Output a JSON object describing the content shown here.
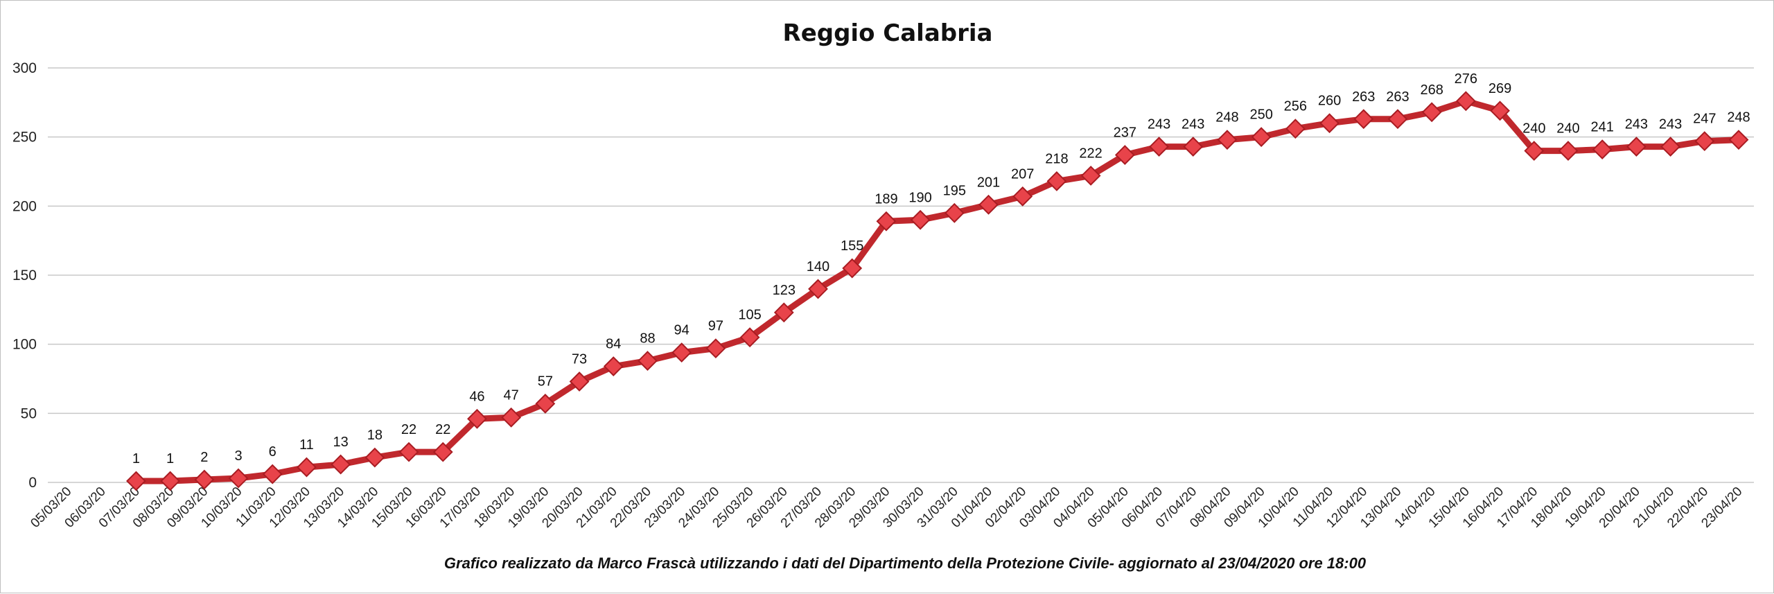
{
  "chart_data": {
    "type": "line",
    "title": "Reggio Calabria",
    "caption": "Grafico  realizzato da Marco Frascà  utilizzando i dati del Dipartimento  della Protezione Civile- aggiornato al 23/04/2020 ore 18:00",
    "ylim": [
      0,
      300
    ],
    "yticks": [
      "0",
      "50",
      "100",
      "150",
      "200",
      "250",
      "300"
    ],
    "grid": true,
    "legend": "none",
    "colors": {
      "line": "#c0282d",
      "marker": "#e8434a",
      "marker_edge": "#a81c22",
      "grid": "#c8c8c8"
    },
    "categories": [
      "05/03/20",
      "06/03/20",
      "07/03/20",
      "08/03/20",
      "09/03/20",
      "10/03/20",
      "11/03/20",
      "12/03/20",
      "13/03/20",
      "14/03/20",
      "15/03/20",
      "16/03/20",
      "17/03/20",
      "18/03/20",
      "19/03/20",
      "20/03/20",
      "21/03/20",
      "22/03/20",
      "23/03/20",
      "24/03/20",
      "25/03/20",
      "26/03/20",
      "27/03/20",
      "28/03/20",
      "29/03/20",
      "30/03/20",
      "31/03/20",
      "01/04/20",
      "02/04/20",
      "03/04/20",
      "04/04/20",
      "05/04/20",
      "06/04/20",
      "07/04/20",
      "08/04/20",
      "09/04/20",
      "10/04/20",
      "11/04/20",
      "12/04/20",
      "13/04/20",
      "14/04/20",
      "15/04/20",
      "16/04/20",
      "17/04/20",
      "18/04/20",
      "19/04/20",
      "20/04/20",
      "21/04/20",
      "22/04/20",
      "23/04/20"
    ],
    "values": [
      null,
      null,
      1,
      1,
      2,
      3,
      6,
      11,
      13,
      18,
      22,
      22,
      46,
      47,
      57,
      73,
      84,
      88,
      94,
      97,
      105,
      123,
      140,
      155,
      189,
      190,
      195,
      201,
      207,
      218,
      222,
      237,
      243,
      243,
      248,
      250,
      256,
      260,
      263,
      263,
      268,
      276,
      269,
      240,
      240,
      241,
      243,
      243,
      247,
      248
    ]
  }
}
